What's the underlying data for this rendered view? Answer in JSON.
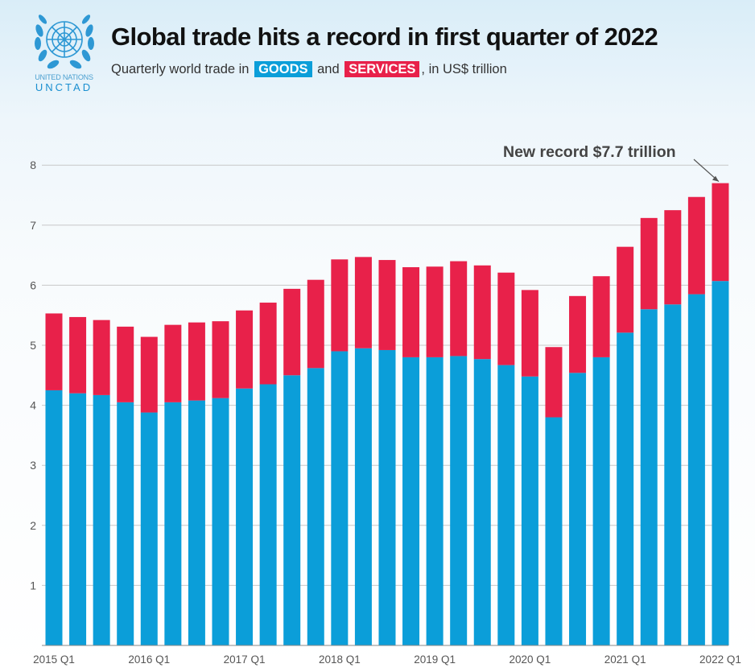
{
  "logo": {
    "line1": "UNITED NATIONS",
    "line2": "UNCTAD"
  },
  "header": {
    "title": "Global trade hits a record in first quarter of 2022",
    "subtitle_prefix": "Quarterly world trade in",
    "goods_label": "GOODS",
    "and_text": "and",
    "services_label": "SERVICES",
    "subtitle_suffix": ", in US$ trillion"
  },
  "annotation": "New record $7.7 trillion",
  "colors": {
    "goods": "#0b9ed9",
    "services": "#e8214a",
    "grid": "#c8c8c8",
    "text": "#555555"
  },
  "chart_data": {
    "type": "bar",
    "stacked": true,
    "categories": [
      "2015 Q1",
      "2015 Q2",
      "2015 Q3",
      "2015 Q4",
      "2016 Q1",
      "2016 Q2",
      "2016 Q3",
      "2016 Q4",
      "2017 Q1",
      "2017 Q2",
      "2017 Q3",
      "2017 Q4",
      "2018 Q1",
      "2018 Q2",
      "2018 Q3",
      "2018 Q4",
      "2019 Q1",
      "2019 Q2",
      "2019 Q3",
      "2019 Q4",
      "2020 Q1",
      "2020 Q2",
      "2020 Q3",
      "2020 Q4",
      "2021 Q1",
      "2021 Q2",
      "2021 Q3",
      "2021 Q4",
      "2022 Q1"
    ],
    "tick_labels": [
      "2015 Q1",
      "",
      "",
      "",
      "2016 Q1",
      "",
      "",
      "",
      "2017 Q1",
      "",
      "",
      "",
      "2018 Q1",
      "",
      "",
      "",
      "2019 Q1",
      "",
      "",
      "",
      "2020 Q1",
      "",
      "",
      "",
      "2021 Q1",
      "",
      "",
      "",
      "2022 Q1"
    ],
    "series": [
      {
        "name": "GOODS",
        "values": [
          4.25,
          4.2,
          4.17,
          4.05,
          3.88,
          4.05,
          4.08,
          4.12,
          4.28,
          4.35,
          4.5,
          4.62,
          4.9,
          4.95,
          4.92,
          4.8,
          4.8,
          4.82,
          4.77,
          4.67,
          4.48,
          3.8,
          4.54,
          4.8,
          5.21,
          5.6,
          5.68,
          5.85,
          6.07
        ]
      },
      {
        "name": "SERVICES",
        "values": [
          1.28,
          1.27,
          1.25,
          1.26,
          1.26,
          1.29,
          1.3,
          1.28,
          1.3,
          1.36,
          1.44,
          1.47,
          1.53,
          1.52,
          1.5,
          1.5,
          1.51,
          1.58,
          1.56,
          1.54,
          1.44,
          1.17,
          1.28,
          1.35,
          1.43,
          1.52,
          1.57,
          1.62,
          1.63
        ]
      }
    ],
    "ylim": [
      0,
      8
    ],
    "yticks": [
      1,
      2,
      3,
      4,
      5,
      6,
      7,
      8
    ],
    "grid": true
  }
}
